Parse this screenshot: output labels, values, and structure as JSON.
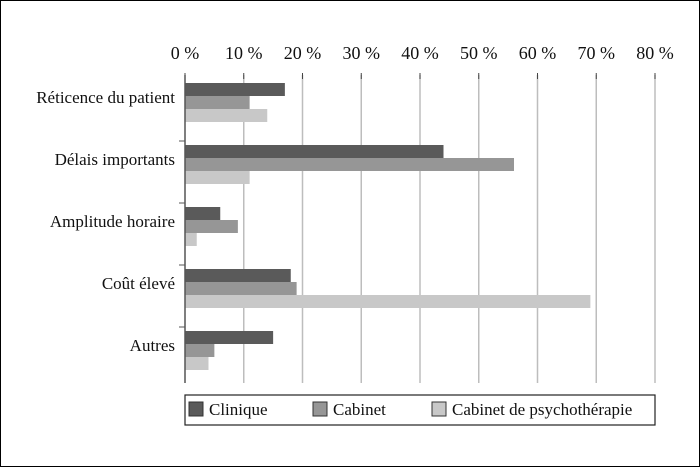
{
  "chart_data": {
    "type": "bar",
    "orientation": "horizontal",
    "categories": [
      "Réticence du patient",
      "Délais importants",
      "Amplitude horaire",
      "Coût élevé",
      "Autres"
    ],
    "x_ticks": [
      "0 %",
      "10 %",
      "20 %",
      "30 %",
      "40 %",
      "50 %",
      "60 %",
      "70 %",
      "80 %"
    ],
    "xlim": [
      0,
      80
    ],
    "series": [
      {
        "name": "Clinique",
        "color": "#5a5a5a",
        "values": [
          17,
          44,
          6,
          18,
          15
        ]
      },
      {
        "name": "Cabinet",
        "color": "#969696",
        "values": [
          11,
          56,
          9,
          19,
          5
        ]
      },
      {
        "name": "Cabinet de psychothérapie",
        "color": "#c8c8c8",
        "values": [
          14,
          11,
          2,
          69,
          4
        ]
      }
    ],
    "grid": true,
    "legend_position": "bottom"
  }
}
